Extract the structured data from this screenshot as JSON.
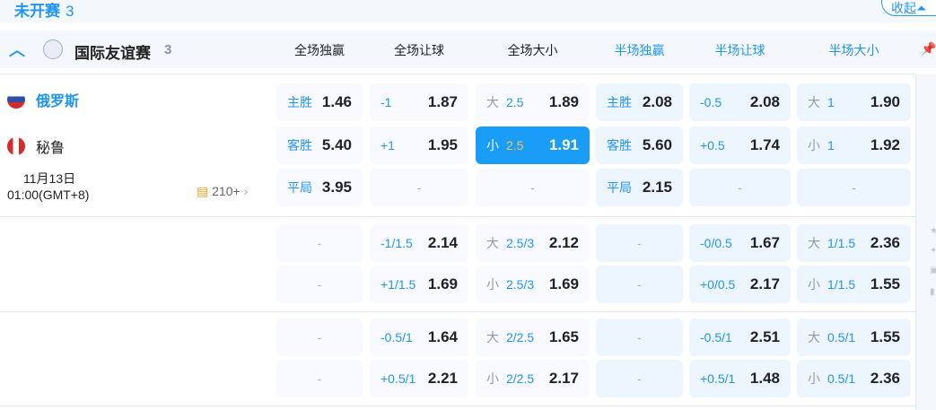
{
  "section": {
    "title": "未开赛",
    "count": "3",
    "collapse_label": "收起"
  },
  "league": {
    "name": "国际友谊赛",
    "count": "3"
  },
  "columns": [
    "全场独赢",
    "全场让球",
    "全场大小",
    "半场独赢",
    "半场让球",
    "半场大小"
  ],
  "colors": {
    "accent": "#1f95f5",
    "selected": "#1a9df6",
    "line_highlight": "#f7c14c"
  },
  "match": {
    "home": "俄罗斯",
    "away": "秘鲁",
    "date": "11月13日",
    "time": "01:00(GMT+8)",
    "more_markets": "210+"
  },
  "blocks": [
    {
      "rows": [
        [
          {
            "label": "主胜",
            "odds": "1.46"
          },
          {
            "line": "-1",
            "odds": "1.87"
          },
          {
            "label": "大",
            "line": "2.5",
            "odds": "1.89"
          },
          {
            "label": "主胜",
            "odds": "2.08"
          },
          {
            "line": "-0.5",
            "odds": "2.08"
          },
          {
            "label": "大",
            "line": "1",
            "odds": "1.90"
          }
        ],
        [
          {
            "label": "客胜",
            "odds": "5.40"
          },
          {
            "line": "+1",
            "odds": "1.95"
          },
          {
            "label": "小",
            "line": "2.5",
            "odds": "1.91",
            "selected": true
          },
          {
            "label": "客胜",
            "odds": "5.60"
          },
          {
            "line": "+0.5",
            "odds": "1.74"
          },
          {
            "label": "小",
            "line": "1",
            "odds": "1.92"
          }
        ],
        [
          {
            "label": "平局",
            "odds": "3.95"
          },
          {
            "empty": "-"
          },
          {
            "empty": "-"
          },
          {
            "label": "平局",
            "odds": "2.15"
          },
          {
            "empty": "-"
          },
          {
            "empty": "-"
          }
        ]
      ]
    },
    {
      "rows": [
        [
          {
            "empty": "-"
          },
          {
            "line": "-1/1.5",
            "odds": "2.14"
          },
          {
            "label": "大",
            "line": "2.5/3",
            "odds": "2.12"
          },
          {
            "empty": "-"
          },
          {
            "line": "-0/0.5",
            "odds": "1.67"
          },
          {
            "label": "大",
            "line": "1/1.5",
            "odds": "2.36"
          }
        ],
        [
          {
            "empty": "-"
          },
          {
            "line": "+1/1.5",
            "odds": "1.69"
          },
          {
            "label": "小",
            "line": "2.5/3",
            "odds": "1.69"
          },
          {
            "empty": "-"
          },
          {
            "line": "+0/0.5",
            "odds": "2.17"
          },
          {
            "label": "小",
            "line": "1/1.5",
            "odds": "1.55"
          }
        ]
      ]
    },
    {
      "rows": [
        [
          {
            "empty": "-"
          },
          {
            "line": "-0.5/1",
            "odds": "1.64"
          },
          {
            "label": "大",
            "line": "2/2.5",
            "odds": "1.65"
          },
          {
            "empty": "-"
          },
          {
            "line": "-0.5/1",
            "odds": "2.51"
          },
          {
            "label": "大",
            "line": "0.5/1",
            "odds": "1.55"
          }
        ],
        [
          {
            "empty": "-"
          },
          {
            "line": "+0.5/1",
            "odds": "2.21"
          },
          {
            "label": "小",
            "line": "2/2.5",
            "odds": "2.17"
          },
          {
            "empty": "-"
          },
          {
            "line": "+0.5/1",
            "odds": "1.48"
          },
          {
            "label": "小",
            "line": "0.5/1",
            "odds": "2.36"
          }
        ]
      ]
    }
  ]
}
